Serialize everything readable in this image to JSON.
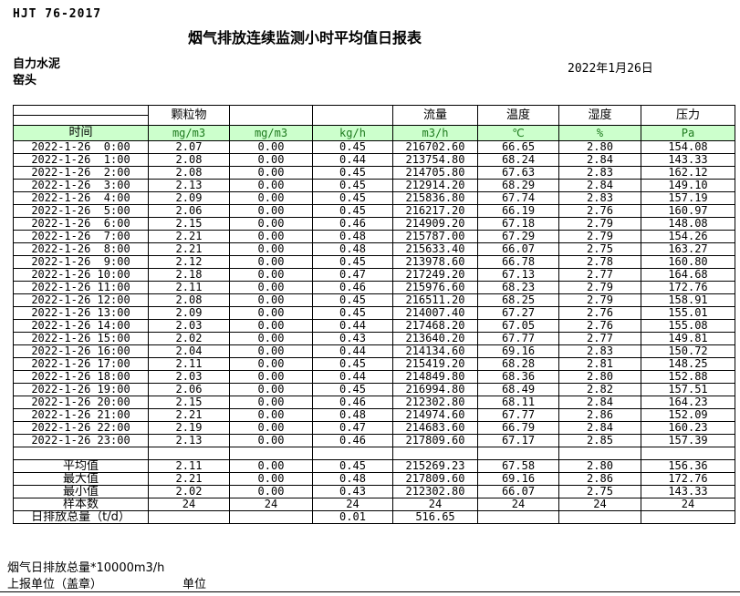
{
  "header": {
    "standard": "HJT  76-2017",
    "title": "烟气排放连续监测小时平均值日报表",
    "company": "自力水泥",
    "location": "窑头",
    "date": "2022年1月26日"
  },
  "table": {
    "time_header": "时间",
    "groups": [
      "颗粒物",
      "",
      "",
      "流量",
      "温度",
      "湿度",
      "压力"
    ],
    "units": [
      "mg/m3",
      "mg/m3",
      "kg/h",
      "m3/h",
      "℃",
      "%",
      "Pa"
    ],
    "rows": [
      {
        "time": "2022-1-26  0:00",
        "values": [
          "2.07",
          "0.00",
          "0.45",
          "216702.60",
          "66.65",
          "2.80",
          "154.08"
        ]
      },
      {
        "time": "2022-1-26  1:00",
        "values": [
          "2.08",
          "0.00",
          "0.44",
          "213754.80",
          "68.24",
          "2.84",
          "143.33"
        ]
      },
      {
        "time": "2022-1-26  2:00",
        "values": [
          "2.08",
          "0.00",
          "0.45",
          "214705.80",
          "67.63",
          "2.83",
          "162.12"
        ]
      },
      {
        "time": "2022-1-26  3:00",
        "values": [
          "2.13",
          "0.00",
          "0.45",
          "212914.20",
          "68.29",
          "2.84",
          "149.10"
        ]
      },
      {
        "time": "2022-1-26  4:00",
        "values": [
          "2.09",
          "0.00",
          "0.45",
          "215836.80",
          "67.74",
          "2.83",
          "157.19"
        ]
      },
      {
        "time": "2022-1-26  5:00",
        "values": [
          "2.06",
          "0.00",
          "0.45",
          "216217.20",
          "66.19",
          "2.76",
          "160.97"
        ]
      },
      {
        "time": "2022-1-26  6:00",
        "values": [
          "2.15",
          "0.00",
          "0.46",
          "214909.20",
          "67.18",
          "2.79",
          "148.08"
        ]
      },
      {
        "time": "2022-1-26  7:00",
        "values": [
          "2.21",
          "0.00",
          "0.48",
          "215787.00",
          "67.29",
          "2.79",
          "154.26"
        ]
      },
      {
        "time": "2022-1-26  8:00",
        "values": [
          "2.21",
          "0.00",
          "0.48",
          "215633.40",
          "66.07",
          "2.75",
          "163.27"
        ]
      },
      {
        "time": "2022-1-26  9:00",
        "values": [
          "2.12",
          "0.00",
          "0.45",
          "213978.60",
          "66.78",
          "2.78",
          "160.80"
        ]
      },
      {
        "time": "2022-1-26 10:00",
        "values": [
          "2.18",
          "0.00",
          "0.47",
          "217249.20",
          "67.13",
          "2.77",
          "164.68"
        ]
      },
      {
        "time": "2022-1-26 11:00",
        "values": [
          "2.11",
          "0.00",
          "0.46",
          "215976.60",
          "68.23",
          "2.79",
          "172.76"
        ]
      },
      {
        "time": "2022-1-26 12:00",
        "values": [
          "2.08",
          "0.00",
          "0.45",
          "216511.20",
          "68.25",
          "2.79",
          "158.91"
        ]
      },
      {
        "time": "2022-1-26 13:00",
        "values": [
          "2.09",
          "0.00",
          "0.45",
          "214007.40",
          "67.27",
          "2.76",
          "155.01"
        ]
      },
      {
        "time": "2022-1-26 14:00",
        "values": [
          "2.03",
          "0.00",
          "0.44",
          "217468.20",
          "67.05",
          "2.76",
          "155.08"
        ]
      },
      {
        "time": "2022-1-26 15:00",
        "values": [
          "2.02",
          "0.00",
          "0.43",
          "213640.20",
          "67.77",
          "2.77",
          "149.81"
        ]
      },
      {
        "time": "2022-1-26 16:00",
        "values": [
          "2.04",
          "0.00",
          "0.44",
          "214134.60",
          "69.16",
          "2.83",
          "150.72"
        ]
      },
      {
        "time": "2022-1-26 17:00",
        "values": [
          "2.11",
          "0.00",
          "0.45",
          "215419.20",
          "68.28",
          "2.81",
          "148.25"
        ]
      },
      {
        "time": "2022-1-26 18:00",
        "values": [
          "2.03",
          "0.00",
          "0.44",
          "214849.80",
          "68.36",
          "2.80",
          "152.88"
        ]
      },
      {
        "time": "2022-1-26 19:00",
        "values": [
          "2.06",
          "0.00",
          "0.45",
          "216994.80",
          "68.49",
          "2.82",
          "157.51"
        ]
      },
      {
        "time": "2022-1-26 20:00",
        "values": [
          "2.15",
          "0.00",
          "0.46",
          "212302.80",
          "68.11",
          "2.84",
          "164.23"
        ]
      },
      {
        "time": "2022-1-26 21:00",
        "values": [
          "2.21",
          "0.00",
          "0.48",
          "214974.60",
          "67.77",
          "2.86",
          "152.09"
        ]
      },
      {
        "time": "2022-1-26 22:00",
        "values": [
          "2.19",
          "0.00",
          "0.47",
          "214683.60",
          "66.79",
          "2.84",
          "160.23"
        ]
      },
      {
        "time": "2022-1-26 23:00",
        "values": [
          "2.13",
          "0.00",
          "0.46",
          "217809.60",
          "67.17",
          "2.85",
          "157.39"
        ]
      }
    ],
    "summary": [
      {
        "label": "平均值",
        "values": [
          "2.11",
          "0.00",
          "0.45",
          "215269.23",
          "67.58",
          "2.80",
          "156.36"
        ]
      },
      {
        "label": "最大值",
        "values": [
          "2.21",
          "0.00",
          "0.48",
          "217809.60",
          "69.16",
          "2.86",
          "172.76"
        ]
      },
      {
        "label": "最小值",
        "values": [
          "2.02",
          "0.00",
          "0.43",
          "212302.80",
          "66.07",
          "2.75",
          "143.33"
        ]
      },
      {
        "label": "样本数",
        "values": [
          "24",
          "24",
          "24",
          "24",
          "24",
          "24",
          "24"
        ]
      },
      {
        "label": "日排放总量（t/d）",
        "values": [
          "",
          "",
          "0.01",
          "516.65",
          "",
          "",
          ""
        ]
      }
    ]
  },
  "footer": {
    "note": "烟气日排放总量*10000m3/h",
    "report_unit_label": "上报单位（盖章）",
    "unit_label": "单位"
  },
  "colors": {
    "header_green": "#ccffcc",
    "unit_text_green": "#1e7b1e",
    "border": "#000000"
  }
}
